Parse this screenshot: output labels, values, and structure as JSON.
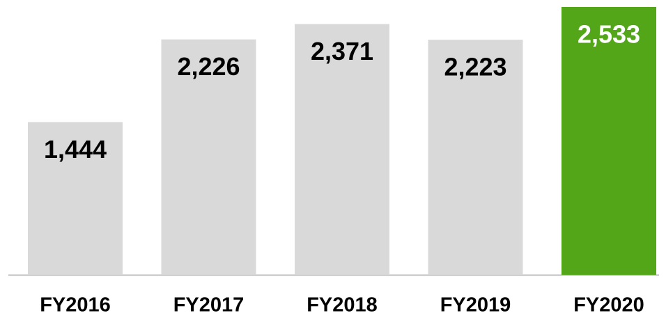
{
  "chart_data": {
    "type": "bar",
    "categories": [
      "FY2016",
      "FY2017",
      "FY2018",
      "FY2019",
      "FY2020"
    ],
    "values": [
      1444,
      2226,
      2371,
      2223,
      2533
    ],
    "value_labels": [
      "1,444",
      "2,226",
      "2,371",
      "2,223",
      "2,533"
    ],
    "colors": [
      "#d9d9d9",
      "#d9d9d9",
      "#d9d9d9",
      "#d9d9d9",
      "#52a617"
    ],
    "label_colors": [
      "#000000",
      "#000000",
      "#000000",
      "#000000",
      "#ffffff"
    ]
  }
}
